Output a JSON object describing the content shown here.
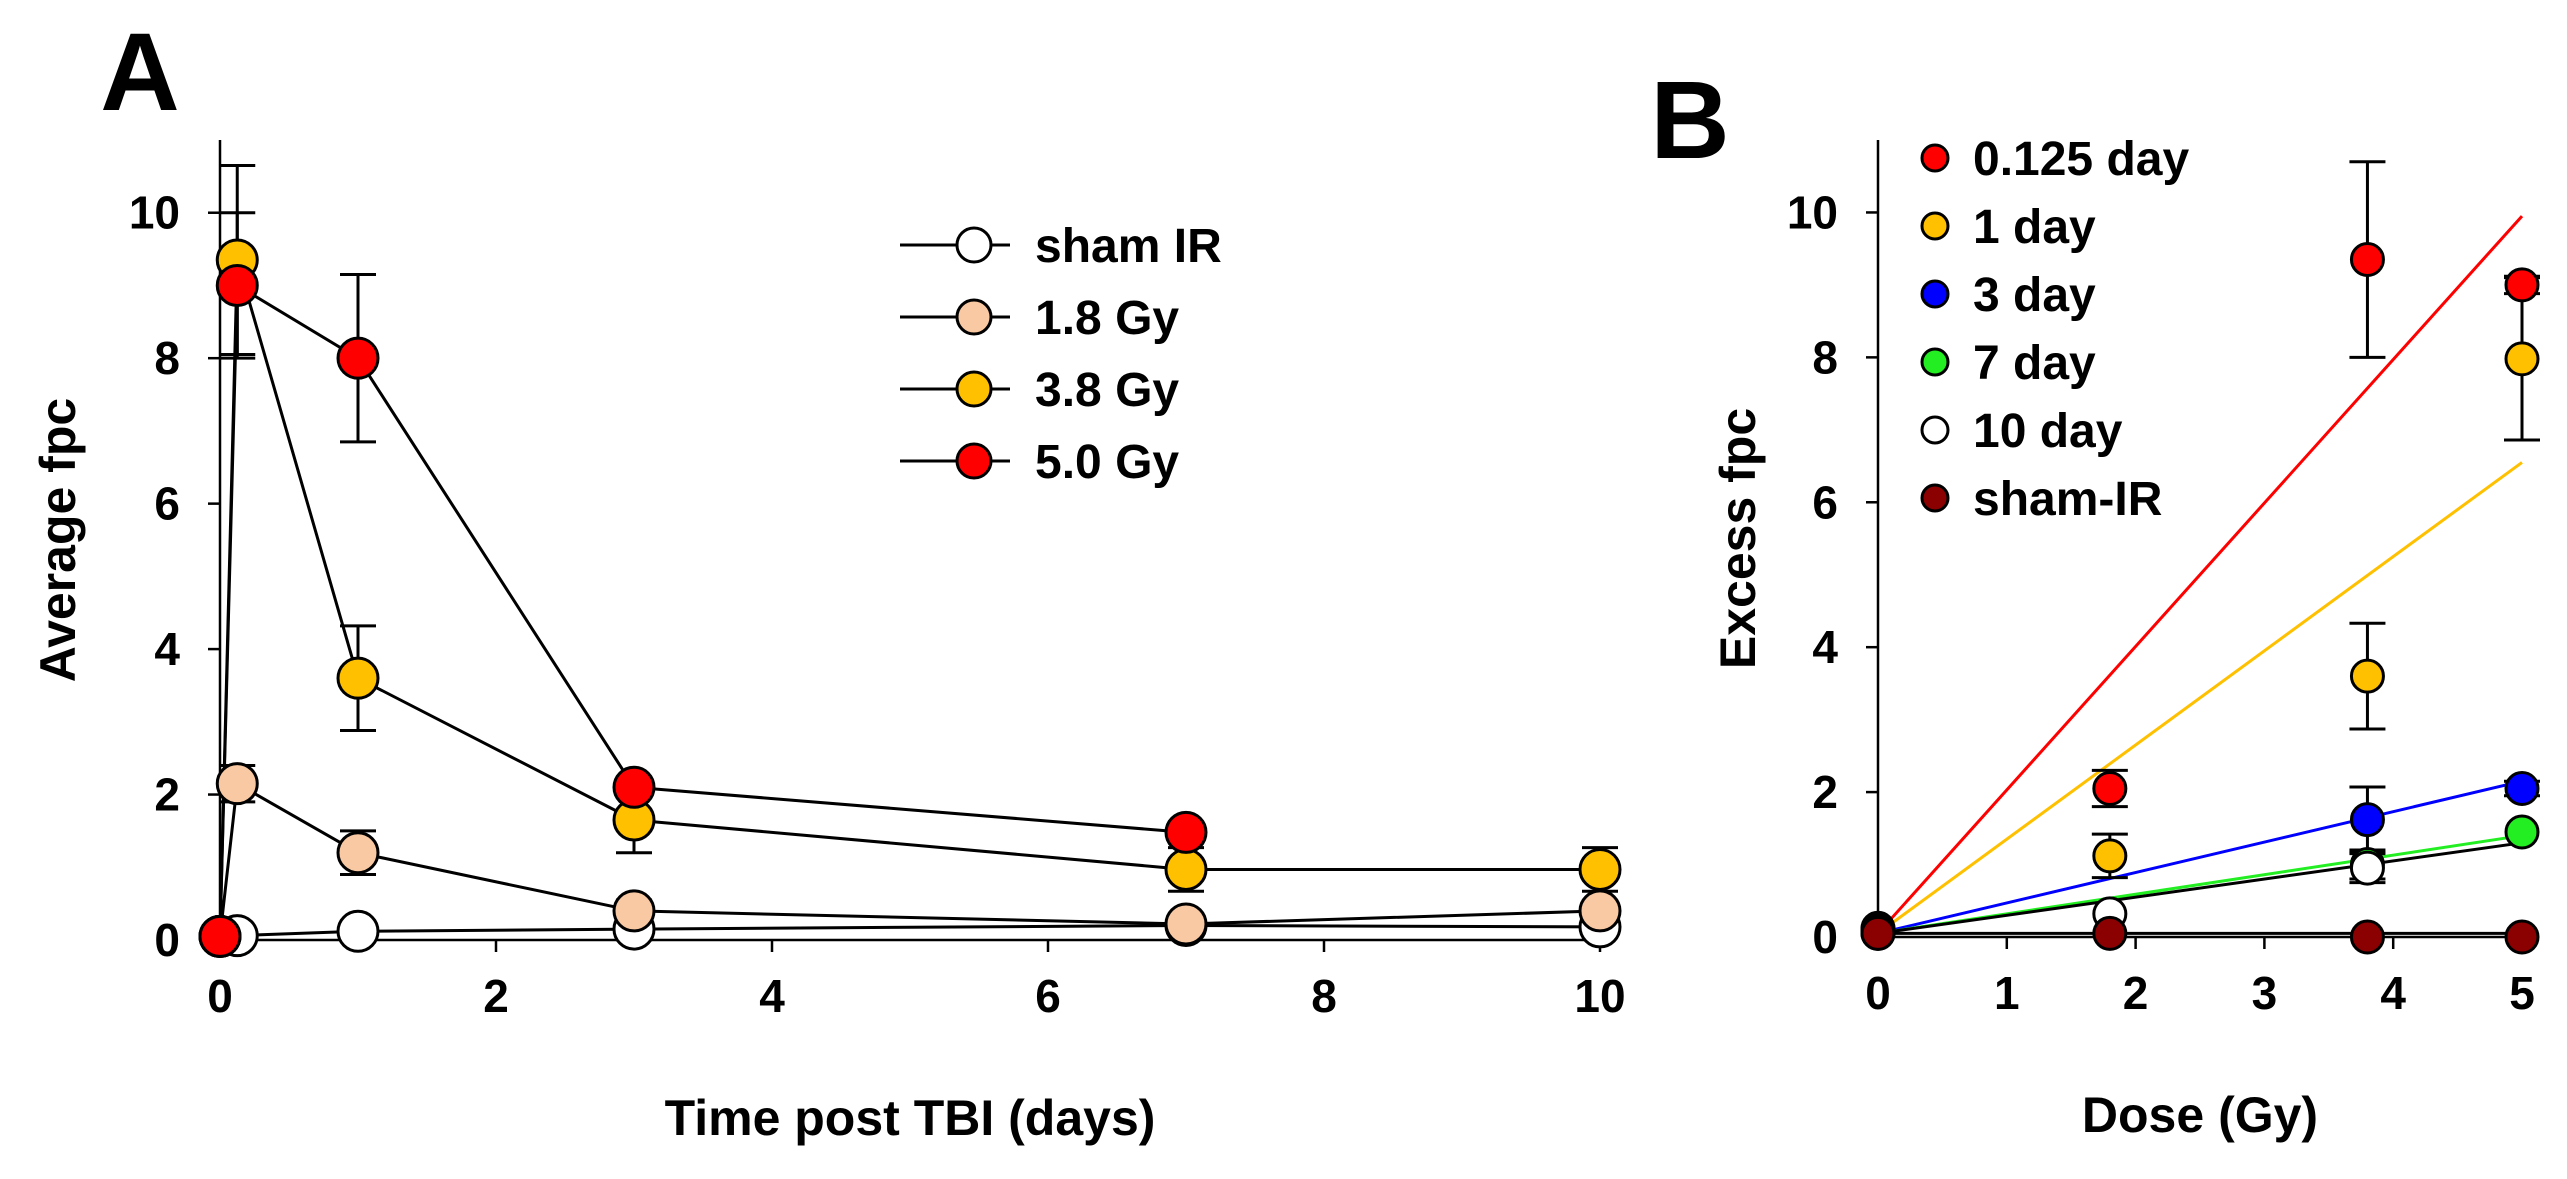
{
  "chart_data": [
    {
      "panel": "A",
      "type": "line",
      "xlabel": "Time post TBI (days)",
      "ylabel": "Average fpc",
      "xlim": [
        0,
        10
      ],
      "ylim": [
        0,
        11
      ],
      "xticks": [
        0,
        2,
        4,
        6,
        8,
        10
      ],
      "yticks": [
        0,
        2,
        4,
        6,
        8,
        10
      ],
      "x": [
        0,
        0.125,
        1,
        3,
        7,
        10
      ],
      "legend_position": "top-right",
      "series": [
        {
          "name": "sham IR",
          "color": "#ffffff",
          "values": [
            0.05,
            0.06,
            0.12,
            0.15,
            0.2,
            0.18
          ],
          "err": [
            0,
            0,
            0,
            0,
            0,
            0
          ]
        },
        {
          "name": "1.8 Gy",
          "color": "#f9c9a3",
          "values": [
            0.05,
            2.15,
            1.2,
            0.4,
            0.22,
            0.4
          ],
          "err": [
            0,
            0.25,
            0.3,
            0.15,
            0,
            0.1
          ]
        },
        {
          "name": "3.8 Gy",
          "color": "#ffc000",
          "values": [
            0.05,
            9.35,
            3.6,
            1.65,
            0.97,
            0.97
          ],
          "err": [
            0,
            1.3,
            0.72,
            0.45,
            0.3,
            0.3
          ]
        },
        {
          "name": "5.0 Gy",
          "color": "#ff0000",
          "values": [
            0.05,
            9.0,
            8.0,
            2.1,
            1.48,
            null
          ],
          "err": [
            0,
            1.0,
            1.15,
            0.12,
            0.1,
            0
          ]
        }
      ]
    },
    {
      "panel": "B",
      "type": "scatter",
      "xlabel": "Dose (Gy)",
      "ylabel": "Excess fpc",
      "xlim": [
        0,
        5
      ],
      "ylim": [
        0,
        11
      ],
      "xticks": [
        0,
        1,
        2,
        3,
        4,
        5
      ],
      "yticks": [
        0,
        2,
        4,
        6,
        8,
        10
      ],
      "x": [
        0,
        1.8,
        3.8,
        5.0
      ],
      "legend_position": "top-left",
      "series": [
        {
          "name": "0.125 day",
          "color": "#ff0000",
          "values": [
            0.12,
            2.05,
            9.35,
            9.0
          ],
          "err": [
            0,
            0.25,
            1.35,
            0.12
          ],
          "fit_slope": 1.98
        },
        {
          "name": "1 day",
          "color": "#ffc000",
          "values": [
            0.1,
            1.12,
            3.6,
            7.98
          ],
          "err": [
            0,
            0.3,
            0.73,
            1.12
          ],
          "fit_slope": 1.3
        },
        {
          "name": "3 day",
          "color": "#0000ff",
          "values": [
            0.08,
            null,
            1.62,
            2.05
          ],
          "err": [
            0,
            0,
            0.45,
            0.1
          ],
          "fit_slope": 0.42
        },
        {
          "name": "7 day",
          "color": "#22ee22",
          "values": [
            0.06,
            null,
            1.0,
            1.45
          ],
          "err": [
            0,
            0,
            0.2,
            0
          ],
          "fit_slope": 0.27
        },
        {
          "name": "10 day",
          "color": "#ffffff",
          "values": [
            0.05,
            0.32,
            0.95,
            null
          ],
          "err": [
            0,
            0,
            0.2,
            0
          ],
          "fit_slope": 0.25
        },
        {
          "name": "sham-IR",
          "color": "#8b0000",
          "values": [
            0.05,
            0.05,
            0.0,
            0.0
          ],
          "err": [
            0,
            0,
            0,
            0
          ],
          "fit_slope": 0
        }
      ],
      "fit_line_colors": [
        "#ff0000",
        "#ffc000",
        "#0000ff",
        "#22ee22",
        "#000000",
        "#000000"
      ]
    }
  ]
}
